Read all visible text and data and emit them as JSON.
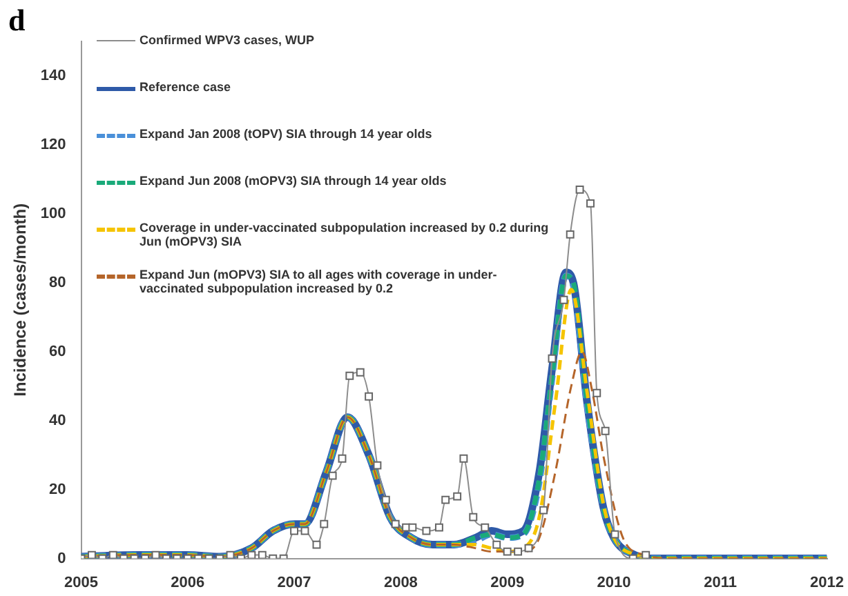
{
  "chart_data": {
    "type": "line",
    "xlabel": null,
    "ylabel": "Incidence (cases/month)",
    "annotations": [
      "d"
    ],
    "xlim": [
      2005,
      2012
    ],
    "xticks": [
      2005,
      2006,
      2007,
      2008,
      2009,
      2010,
      2011,
      2012
    ],
    "ylim": [
      0,
      150
    ],
    "yticks": [
      0,
      20,
      40,
      60,
      80,
      100,
      120,
      140
    ],
    "grid": false,
    "legend": "top left",
    "series": [
      {
        "name": "Confirmed WPV3 cases, WUP",
        "color": "#8c8c8c",
        "marker": "square",
        "line_style": "solid",
        "x": [
          2005.0,
          2005.1,
          2005.2,
          2005.3,
          2005.4,
          2005.5,
          2005.6,
          2005.7,
          2005.8,
          2005.9,
          2006.0,
          2006.1,
          2006.2,
          2006.3,
          2006.4,
          2006.5,
          2006.6,
          2006.7,
          2006.8,
          2006.9,
          2007.0,
          2007.1,
          2007.21,
          2007.28,
          2007.36,
          2007.45,
          2007.52,
          2007.62,
          2007.7,
          2007.78,
          2007.86,
          2007.95,
          2008.05,
          2008.11,
          2008.24,
          2008.36,
          2008.42,
          2008.53,
          2008.59,
          2008.68,
          2008.79,
          2008.9,
          2009.0,
          2009.1,
          2009.2,
          2009.34,
          2009.42,
          2009.53,
          2009.59,
          2009.68,
          2009.78,
          2009.84,
          2009.92,
          2010.01,
          2010.18,
          2010.3
        ],
        "values": [
          0,
          1,
          0,
          1,
          0,
          0,
          0,
          1,
          0,
          0,
          0,
          0,
          0,
          0,
          1,
          0,
          1,
          1,
          0,
          0,
          8,
          8,
          4,
          10,
          24,
          29,
          53,
          54,
          47,
          27,
          17,
          10,
          9,
          9,
          8,
          9,
          17,
          18,
          29,
          12,
          9,
          4,
          2,
          2,
          3,
          14,
          58,
          75,
          94,
          107,
          103,
          48,
          37,
          7,
          0,
          1
        ]
      },
      {
        "name": "Reference case",
        "color": "#2e5aa8",
        "marker": "none",
        "line_style": "solid",
        "x": [
          2005,
          2005.5,
          2006,
          2006.3,
          2006.6,
          2006.8,
          2007.0,
          2007.1,
          2007.3,
          2007.5,
          2007.7,
          2007.9,
          2008.1,
          2008.3,
          2008.5,
          2008.7,
          2008.85,
          2009.0,
          2009.15,
          2009.3,
          2009.42,
          2009.55,
          2009.62,
          2009.75,
          2009.9,
          2010.0,
          2010.2,
          2010.4,
          2012
        ],
        "values": [
          0.5,
          1,
          1,
          0.5,
          3,
          8,
          10,
          10,
          25,
          41,
          30,
          12,
          6,
          4,
          4,
          6,
          8,
          7,
          8,
          25,
          55,
          83,
          80,
          45,
          15,
          6,
          1,
          0,
          0
        ]
      },
      {
        "name": "Expand Jan 2008 (tOPV) SIA through 14 year olds",
        "color": "#4a90d9",
        "marker": "none",
        "line_style": "dashed",
        "x": [
          2005,
          2005.5,
          2006,
          2006.3,
          2006.6,
          2006.8,
          2007.0,
          2007.1,
          2007.3,
          2007.5,
          2007.7,
          2007.9,
          2008.1,
          2008.3,
          2008.5,
          2008.7,
          2008.85,
          2009.0,
          2009.15,
          2009.3,
          2009.42,
          2009.55,
          2009.62,
          2009.75,
          2009.9,
          2010.0,
          2010.2,
          2010.4,
          2012
        ],
        "values": [
          0.5,
          1,
          1,
          0.5,
          3,
          8,
          10,
          10,
          25,
          41,
          30,
          12,
          6,
          4,
          4,
          5,
          7,
          6,
          7,
          22,
          52,
          82,
          79,
          44,
          15,
          6,
          1,
          0,
          0
        ]
      },
      {
        "name": "Expand Jun 2008 (mOPV3) SIA through 14 year olds",
        "color": "#1aaa7a",
        "marker": "none",
        "line_style": "dashed",
        "x": [
          2005,
          2005.5,
          2006,
          2006.3,
          2006.6,
          2006.8,
          2007.0,
          2007.1,
          2007.3,
          2007.5,
          2007.7,
          2007.9,
          2008.1,
          2008.3,
          2008.5,
          2008.7,
          2008.85,
          2009.0,
          2009.15,
          2009.3,
          2009.42,
          2009.55,
          2009.62,
          2009.75,
          2009.9,
          2010.0,
          2010.2,
          2010.4,
          2012
        ],
        "values": [
          0.5,
          1,
          1,
          0.5,
          3,
          8,
          10,
          10,
          25,
          41,
          30,
          12,
          6,
          4,
          4,
          6,
          7,
          6,
          7,
          23,
          53,
          82,
          80,
          45,
          15,
          6,
          1,
          0,
          0
        ]
      },
      {
        "name": "Coverage in under-vaccinated subpopulation increased by 0.2 during Jun (mOPV3) SIA",
        "color": "#f5c400",
        "marker": "none",
        "line_style": "dashed",
        "x": [
          2005,
          2005.5,
          2006,
          2006.3,
          2006.6,
          2006.8,
          2007.0,
          2007.1,
          2007.3,
          2007.5,
          2007.7,
          2007.9,
          2008.1,
          2008.3,
          2008.5,
          2008.7,
          2008.85,
          2009.0,
          2009.15,
          2009.3,
          2009.45,
          2009.6,
          2009.75,
          2009.9,
          2010.0,
          2010.2,
          2010.4,
          2012
        ],
        "values": [
          0.5,
          1,
          1,
          0.5,
          3,
          8,
          10,
          10,
          25,
          41,
          30,
          12,
          6,
          4,
          4,
          4,
          3,
          2,
          3,
          12,
          45,
          78,
          48,
          16,
          6,
          1,
          0,
          0
        ]
      },
      {
        "name": "Expand Jun (mOPV3) SIA to all ages with coverage in under-vaccinated subpopulation increased by 0.2",
        "color": "#b5652a",
        "marker": "none",
        "line_style": "dashed",
        "x": [
          2005,
          2005.5,
          2006,
          2006.3,
          2006.6,
          2006.8,
          2007.0,
          2007.1,
          2007.3,
          2007.5,
          2007.7,
          2007.9,
          2008.1,
          2008.3,
          2008.5,
          2008.7,
          2008.85,
          2009.0,
          2009.15,
          2009.3,
          2009.45,
          2009.6,
          2009.7,
          2009.8,
          2009.9,
          2010.1,
          2010.3,
          2010.5,
          2012
        ],
        "values": [
          0.5,
          1,
          1,
          0.5,
          3,
          8,
          10,
          10,
          25,
          41,
          30,
          12,
          6,
          4,
          4,
          3,
          2,
          2,
          2,
          6,
          25,
          50,
          60,
          48,
          30,
          5,
          1,
          0,
          0
        ]
      }
    ]
  }
}
